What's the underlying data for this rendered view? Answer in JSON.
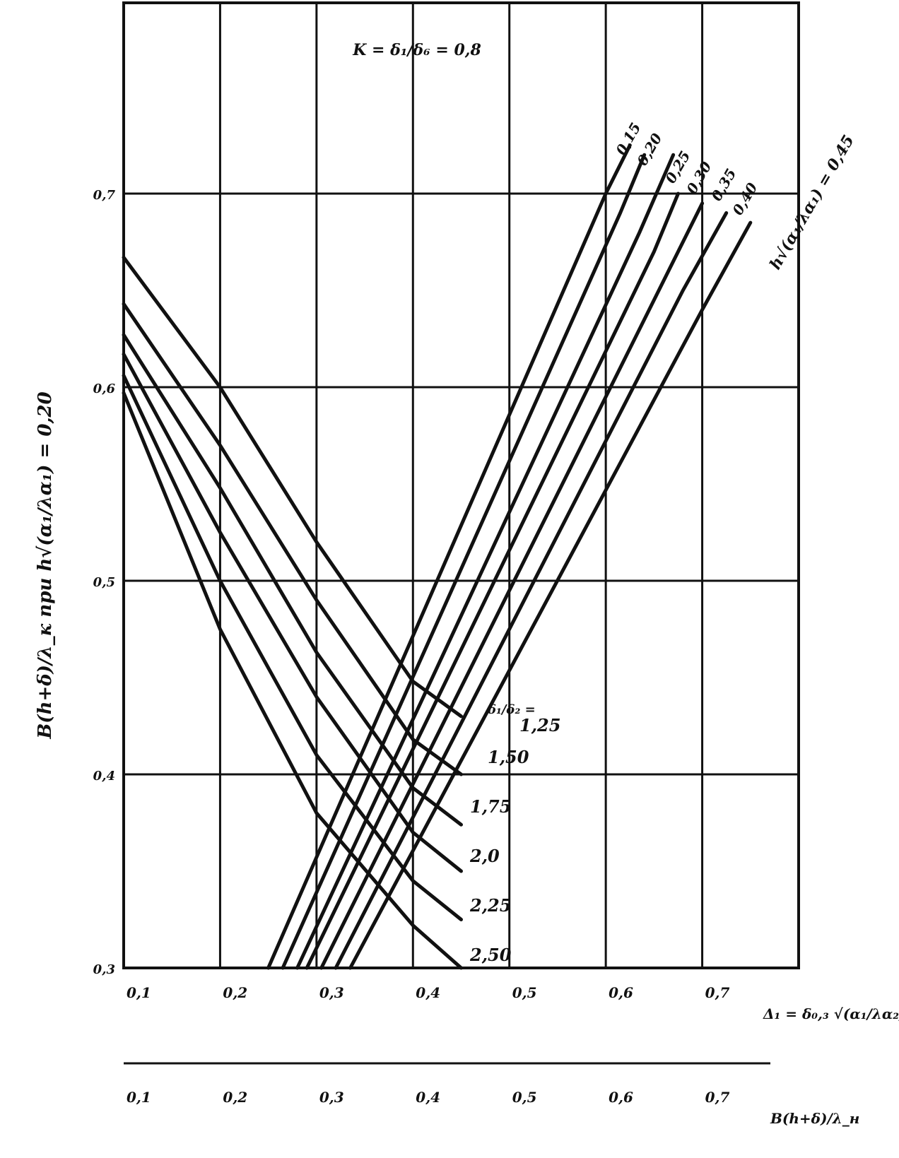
{
  "chart_data": {
    "type": "line",
    "title": "K = δ₁/δ₆ = 0,8",
    "ylabel": "B(h+δ)/λ_к  при  h√(α₁/λα₁) = 0,20",
    "xlabel_main": "Δ₁ = δ₀,₃ √(α₁/λα₂)",
    "xlabel_secondary": "B(h+δ)/λ_н",
    "xlim": [
      0.1,
      0.8
    ],
    "ylim": [
      0.3,
      0.8
    ],
    "grid": true,
    "xticks": [
      "0,1",
      "0,2",
      "0,3",
      "0,4",
      "0,5",
      "0,6",
      "0,7"
    ],
    "xticks_secondary": [
      "0,1",
      "0,2",
      "0,3",
      "0,4",
      "0,5",
      "0,6",
      "0,7"
    ],
    "yticks": [
      "0,3",
      "0,4",
      "0,5",
      "0,6",
      "0,7"
    ],
    "descending_family": {
      "parameter_label": "δ₁/δ₂",
      "series": [
        {
          "name": "1,25",
          "x": [
            0.1,
            0.2,
            0.3,
            0.4,
            0.45
          ],
          "y": [
            0.667,
            0.6,
            0.52,
            0.448,
            0.43
          ]
        },
        {
          "name": "1,50",
          "x": [
            0.1,
            0.2,
            0.3,
            0.4,
            0.45
          ],
          "y": [
            0.643,
            0.57,
            0.49,
            0.418,
            0.4
          ]
        },
        {
          "name": "1,75",
          "x": [
            0.1,
            0.2,
            0.3,
            0.4,
            0.45
          ],
          "y": [
            0.627,
            0.548,
            0.463,
            0.393,
            0.374
          ]
        },
        {
          "name": "2,0",
          "x": [
            0.1,
            0.2,
            0.3,
            0.4,
            0.45
          ],
          "y": [
            0.617,
            0.525,
            0.44,
            0.37,
            0.35
          ]
        },
        {
          "name": "2,25",
          "x": [
            0.1,
            0.2,
            0.3,
            0.4,
            0.45
          ],
          "y": [
            0.606,
            0.5,
            0.41,
            0.345,
            0.325
          ]
        },
        {
          "name": "2,50",
          "x": [
            0.1,
            0.2,
            0.3,
            0.4,
            0.45
          ],
          "y": [
            0.597,
            0.475,
            0.38,
            0.322,
            0.3
          ]
        }
      ]
    },
    "ascending_family": {
      "parameter_label": "h√(α₁/λα₁)",
      "series": [
        {
          "name": "0,15",
          "x": [
            0.25,
            0.6,
            0.625
          ],
          "y": [
            0.3,
            0.7,
            0.725
          ]
        },
        {
          "name": "0,20",
          "x": [
            0.265,
            0.615,
            0.64
          ],
          "y": [
            0.3,
            0.69,
            0.72
          ]
        },
        {
          "name": "0,25",
          "x": [
            0.28,
            0.635,
            0.67
          ],
          "y": [
            0.3,
            0.68,
            0.72
          ]
        },
        {
          "name": "0,30",
          "x": [
            0.29,
            0.65,
            0.675
          ],
          "y": [
            0.3,
            0.67,
            0.7
          ]
        },
        {
          "name": "0,35",
          "x": [
            0.305,
            0.665,
            0.7
          ],
          "y": [
            0.3,
            0.66,
            0.695
          ]
        },
        {
          "name": "0,40",
          "x": [
            0.32,
            0.68,
            0.725
          ],
          "y": [
            0.3,
            0.65,
            0.69
          ]
        },
        {
          "name": "0,45",
          "x": [
            0.335,
            0.7,
            0.75
          ],
          "y": [
            0.3,
            0.64,
            0.685
          ]
        }
      ],
      "rotated_labels": [
        "0,15",
        "0,20",
        "0,25",
        "0,30",
        "0,35",
        "0,40"
      ],
      "rotated_formula": "h√(α₁/λα₁) = 0,45"
    },
    "key_labels": [
      "1,25",
      "1,50",
      "1,75",
      "2,0",
      "2,25",
      "2,50"
    ]
  }
}
